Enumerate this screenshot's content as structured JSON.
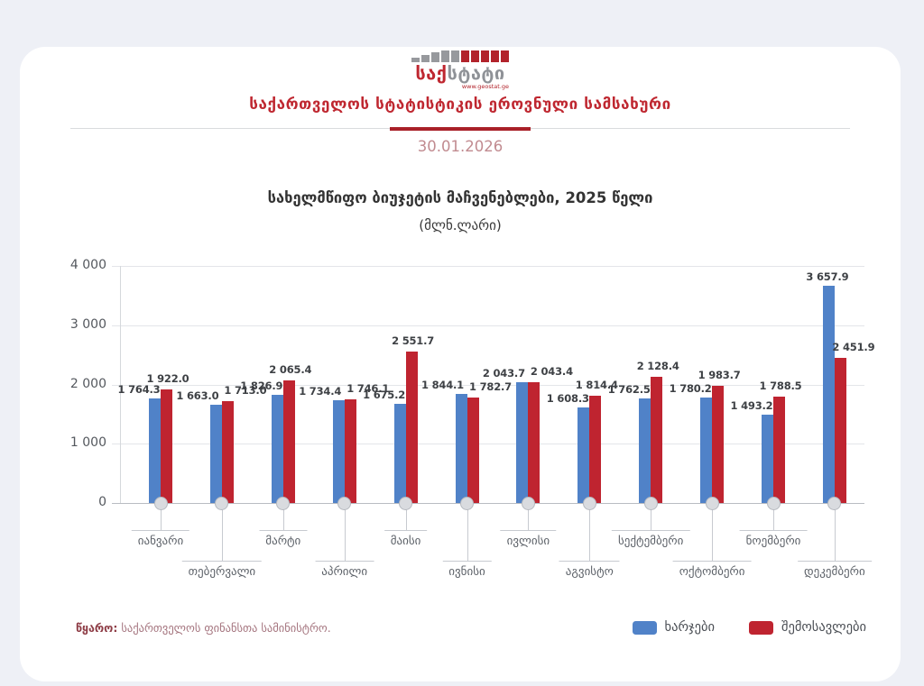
{
  "brand": {
    "red": "#bf2730",
    "gray": "#97999d"
  },
  "logo": {
    "text_red": "საქ",
    "text_gray": "სტატი",
    "url": "www.geostat.ge"
  },
  "header": {
    "title": "საქართველოს სტატისტიკის ეროვნული სამსახური",
    "date": "30.01.2026"
  },
  "chart_data": {
    "type": "bar",
    "title": "სახელმწიფო ბიუჯეტის მაჩვენებლები, 2025 წელი",
    "subtitle": "(მლნ.ლარი)",
    "categories": [
      "იანვარი",
      "თებერვალი",
      "მარტი",
      "აპრილი",
      "მაისი",
      "ივნისი",
      "ივლისი",
      "აგვისტო",
      "სექტემბერი",
      "ოქტომბერი",
      "ნოემბერი",
      "დეკემბერი"
    ],
    "series": [
      {
        "name": "ხარჯები",
        "color": "#5082c8",
        "values": [
          1764.3,
          1663.0,
          1826.9,
          1734.4,
          1675.2,
          1844.1,
          2043.7,
          1608.3,
          1762.5,
          1780.2,
          1493.2,
          3657.9
        ],
        "labels": [
          "1 764.3",
          "1 663.0",
          "1 826.9",
          "1 734.4",
          "1 675.2",
          "1 844.1",
          "2 043.7",
          "1 608.3",
          "1 762.5",
          "1 780.2",
          "1 493.2",
          "3 657.9"
        ]
      },
      {
        "name": "შემოსავლები",
        "color": "#bf2430",
        "values": [
          1922.0,
          1713.0,
          2065.4,
          1746.1,
          2551.7,
          1782.7,
          2043.4,
          1814.4,
          2128.4,
          1983.7,
          1788.5,
          2451.9
        ],
        "labels": [
          "1 922.0",
          "1 713.0",
          "2 065.4",
          "1 746.1",
          "2 551.7",
          "1 782.7",
          "2 043.4",
          "1 814.4",
          "2 128.4",
          "1 983.7",
          "1 788.5",
          "2 451.9"
        ]
      }
    ],
    "y_ticks": [
      "4 000",
      "3 000",
      "2 000",
      "1 000",
      "0"
    ],
    "ylim": [
      0,
      4000
    ],
    "grid": "horizontal",
    "legend_position": "bottom-right"
  },
  "footer": {
    "source_label": "წყარო:",
    "source_text": " საქართველოს ფინანსთა სამინისტრო."
  }
}
